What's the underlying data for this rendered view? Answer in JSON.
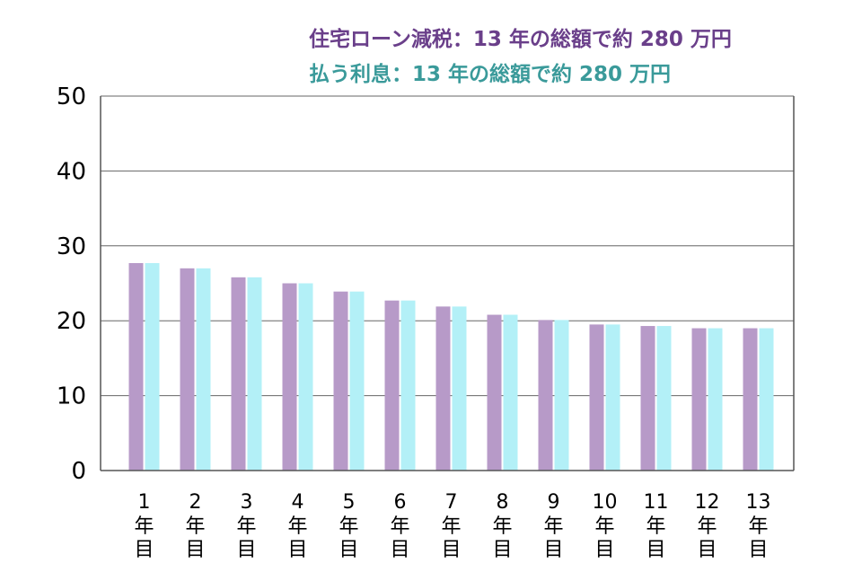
{
  "chart_data": {
    "type": "bar",
    "title": "",
    "xlabel": "",
    "ylabel": "",
    "ylim": [
      0,
      50
    ],
    "yticks": [
      "0",
      "10",
      "20",
      "30",
      "40",
      "50"
    ],
    "grid": true,
    "legend_placement": "top-right",
    "categories": [
      "1年目",
      "2年目",
      "3年目",
      "4年目",
      "5年目",
      "6年目",
      "7年目",
      "8年目",
      "9年目",
      "10年目",
      "11年目",
      "12年目",
      "13年目"
    ],
    "category_numbers": [
      "1",
      "2",
      "3",
      "4",
      "5",
      "6",
      "7",
      "8",
      "9",
      "10",
      "11",
      "12",
      "13"
    ],
    "category_suffix_chars": [
      "年",
      "目"
    ],
    "series": [
      {
        "name": "住宅ローン減税：13 年の総額で約 280 万円",
        "color": "#b79ac8",
        "values": [
          27.7,
          27.0,
          25.8,
          25.0,
          23.9,
          22.7,
          21.9,
          20.8,
          20.1,
          19.5,
          19.3,
          19.0,
          19.0
        ]
      },
      {
        "name": "払う利息：13 年の総額で約 280 万円",
        "color": "#b3f0f7",
        "values": [
          27.7,
          27.0,
          25.8,
          25.0,
          23.9,
          22.7,
          21.9,
          20.8,
          20.1,
          19.5,
          19.3,
          19.0,
          19.0
        ]
      }
    ],
    "legend_text_colors": [
      "#6a3f8a",
      "#3a9a9a"
    ]
  }
}
